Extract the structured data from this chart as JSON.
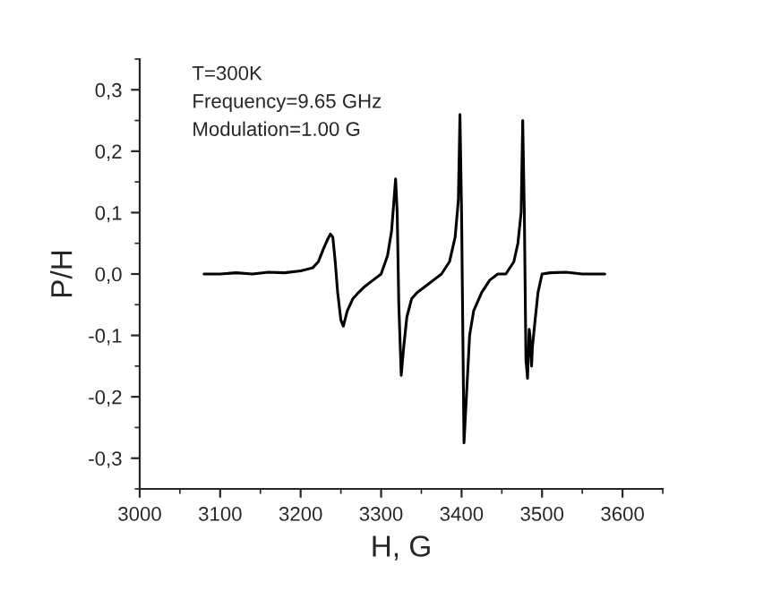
{
  "chart_data": {
    "type": "line",
    "xlabel": "H, G",
    "ylabel": "P/H",
    "annotations": [
      "T=300K",
      "Frequency=9.65 GHz",
      "Modulation=1.00 G"
    ],
    "series": [
      {
        "color": "#000000",
        "x": [
          3080,
          3100,
          3120,
          3140,
          3160,
          3180,
          3200,
          3215,
          3222,
          3228,
          3233,
          3237,
          3240,
          3243,
          3246,
          3250,
          3253,
          3258,
          3265,
          3272,
          3280,
          3290,
          3300,
          3308,
          3313,
          3316,
          3318,
          3320,
          3322,
          3325,
          3328,
          3332,
          3338,
          3345,
          3355,
          3365,
          3375,
          3385,
          3392,
          3396,
          3398,
          3400,
          3402,
          3403,
          3406,
          3410,
          3415,
          3425,
          3435,
          3445,
          3455,
          3465,
          3470,
          3474,
          3476,
          3478,
          3480,
          3482,
          3484,
          3485,
          3487,
          3488,
          3491,
          3495,
          3500,
          3510,
          3530,
          3550,
          3578
        ],
        "values": [
          0.0,
          0.0,
          0.002,
          0.0,
          0.003,
          0.002,
          0.005,
          0.01,
          0.02,
          0.04,
          0.055,
          0.065,
          0.06,
          0.02,
          -0.03,
          -0.075,
          -0.085,
          -0.06,
          -0.04,
          -0.03,
          -0.02,
          -0.01,
          0.0,
          0.03,
          0.07,
          0.12,
          0.155,
          0.1,
          -0.05,
          -0.165,
          -0.12,
          -0.07,
          -0.04,
          -0.03,
          -0.02,
          -0.01,
          0.0,
          0.02,
          0.06,
          0.12,
          0.26,
          0.1,
          -0.15,
          -0.275,
          -0.2,
          -0.1,
          -0.06,
          -0.03,
          -0.01,
          0.0,
          0.0,
          0.02,
          0.05,
          0.1,
          0.25,
          0.1,
          -0.14,
          -0.17,
          -0.09,
          -0.1,
          -0.15,
          -0.12,
          -0.08,
          -0.03,
          0.0,
          0.002,
          0.003,
          0.0,
          0.0
        ]
      }
    ],
    "xlim": [
      3000,
      3650
    ],
    "xticks": [
      3000,
      3100,
      3200,
      3300,
      3400,
      3500,
      3600
    ],
    "ylim": [
      -0.35,
      0.35
    ],
    "yticks": [
      {
        "value": -0.3,
        "label": "-0,3"
      },
      {
        "value": -0.2,
        "label": "-0,2"
      },
      {
        "value": -0.1,
        "label": "-0,1"
      },
      {
        "value": 0.0,
        "label": "0,0"
      },
      {
        "value": 0.1,
        "label": "0,1"
      },
      {
        "value": 0.2,
        "label": "0,2"
      },
      {
        "value": 0.3,
        "label": "0,3"
      }
    ],
    "grid": false,
    "legend": false,
    "marker": "none",
    "line_style": "solid"
  }
}
